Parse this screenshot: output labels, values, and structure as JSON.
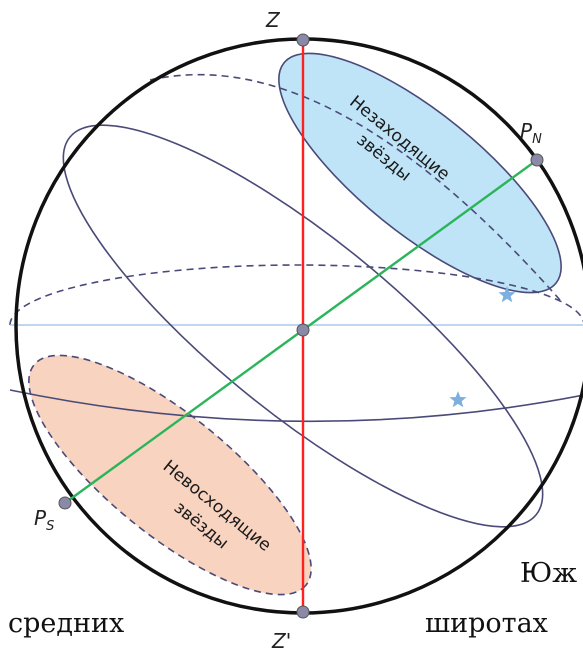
{
  "labels": {
    "zenith": "Z",
    "nadir": "Z'",
    "north_pole": "P",
    "north_pole_sub": "N",
    "south_pole": "P",
    "south_pole_sub": "S"
  },
  "zones": {
    "circumpolar_line1": "Незаходящие",
    "circumpolar_line2": "звёзды",
    "never_rising_line1": "Невосходящие",
    "never_rising_line2": "звёзды"
  },
  "page_text": {
    "left": "средних",
    "right": "широтах",
    "fragment": "Юж"
  },
  "colors": {
    "sphere_outline": "#111111",
    "orbit_lines": "#4a4a78",
    "vertical_axis": "#ff2020",
    "world_axis": "#2bb55a",
    "horizon": "#a8c8ec",
    "circumpolar_fill": "#bfe4f7",
    "never_rising_fill": "#f8d3bf",
    "star": "#7eb0df",
    "point": "#8a8aa8"
  },
  "icons": [
    "star-icon",
    "star-icon"
  ]
}
